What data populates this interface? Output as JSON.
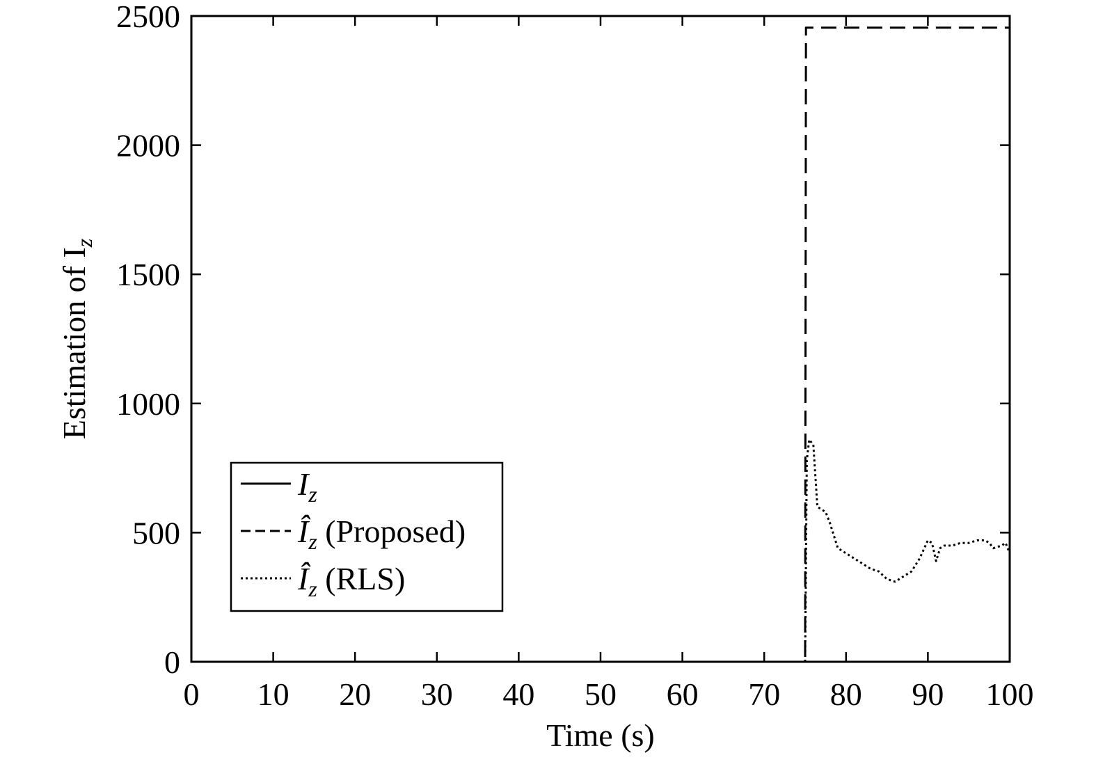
{
  "chart_data": {
    "type": "line",
    "xlabel": "Time (s)",
    "ylabel": "Estimation of I",
    "ylabel_subscript": "z",
    "xlim": [
      0,
      100
    ],
    "ylim": [
      0,
      2500
    ],
    "xticks": [
      0,
      10,
      20,
      30,
      40,
      50,
      60,
      70,
      80,
      90,
      100
    ],
    "yticks": [
      0,
      500,
      1000,
      1500,
      2000,
      2500
    ],
    "grid": false,
    "legend_position": "lower-left",
    "series": [
      {
        "name": "I_z",
        "legend_main": "I",
        "legend_sub": "z",
        "legend_suffix": "",
        "style": "solid",
        "x": [
          0,
          100
        ],
        "y": [
          0,
          0
        ]
      },
      {
        "name": "Î_z (Proposed)",
        "legend_main": "Î",
        "legend_sub": "z",
        "legend_suffix": " (Proposed)",
        "style": "dashed",
        "x": [
          0,
          75,
          75,
          75.1,
          100
        ],
        "y": [
          0,
          0,
          0,
          2455,
          2455
        ]
      },
      {
        "name": "Î_z (RLS)",
        "legend_main": "Î",
        "legend_sub": "z",
        "legend_suffix": " (RLS)",
        "style": "dotted",
        "x": [
          0,
          75,
          75.2,
          75.5,
          76,
          76.5,
          77,
          77.5,
          78,
          79,
          80,
          82,
          83,
          84,
          85,
          86,
          87,
          88,
          89,
          90,
          90.5,
          91,
          91.5,
          92,
          93,
          94,
          95,
          96,
          97,
          97.5,
          98,
          99,
          99.5,
          100
        ],
        "y": [
          0,
          0,
          780,
          860,
          840,
          600,
          590,
          580,
          540,
          440,
          420,
          380,
          360,
          350,
          320,
          310,
          330,
          350,
          400,
          470,
          460,
          390,
          440,
          450,
          450,
          460,
          460,
          470,
          470,
          460,
          440,
          450,
          460,
          420
        ]
      }
    ]
  }
}
